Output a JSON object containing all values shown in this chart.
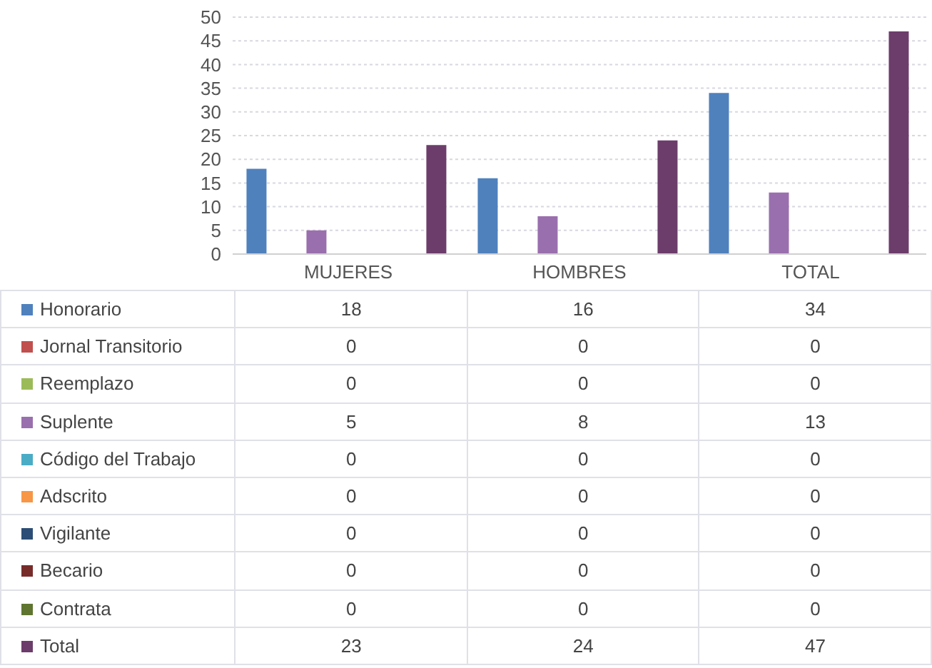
{
  "chart_data": {
    "type": "bar",
    "categories": [
      "MUJERES",
      "HOMBRES",
      "TOTAL"
    ],
    "series": [
      {
        "name": "Honorario",
        "color": "#4f81bd",
        "values": [
          18,
          16,
          34
        ]
      },
      {
        "name": "Jornal Transitorio",
        "color": "#c0504d",
        "values": [
          0,
          0,
          0
        ]
      },
      {
        "name": "Reemplazo",
        "color": "#9bbb59",
        "values": [
          0,
          0,
          0
        ]
      },
      {
        "name": "Suplente",
        "color": "#9a6fae",
        "values": [
          5,
          8,
          13
        ]
      },
      {
        "name": "Código del Trabajo",
        "color": "#4bacc6",
        "values": [
          0,
          0,
          0
        ]
      },
      {
        "name": "Adscrito",
        "color": "#f79646",
        "values": [
          0,
          0,
          0
        ]
      },
      {
        "name": "Vigilante",
        "color": "#2c4d75",
        "values": [
          0,
          0,
          0
        ]
      },
      {
        "name": "Becario",
        "color": "#772c2a",
        "values": [
          0,
          0,
          0
        ]
      },
      {
        "name": "Contrata",
        "color": "#5f7530",
        "values": [
          0,
          0,
          0
        ]
      },
      {
        "name": "Total",
        "color": "#6c3d6b",
        "values": [
          23,
          24,
          47
        ]
      }
    ],
    "ylim": [
      0,
      50
    ],
    "yticks": [
      0,
      5,
      10,
      15,
      20,
      25,
      30,
      35,
      40,
      45,
      50
    ],
    "grid": "y",
    "legend": "bottom",
    "data_labels": true
  }
}
